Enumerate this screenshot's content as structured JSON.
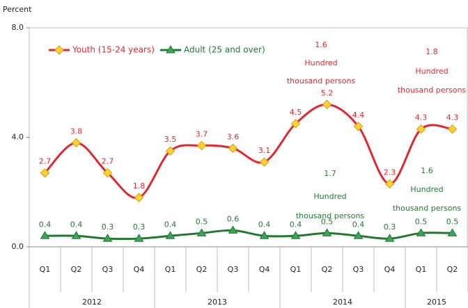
{
  "chart_data": {
    "type": "line",
    "y_axis_label": "Percent",
    "categories": [
      "Q1",
      "Q2",
      "Q3",
      "Q4",
      "Q1",
      "Q2",
      "Q3",
      "Q4",
      "Q1",
      "Q2",
      "Q3",
      "Q4",
      "Q1",
      "Q2"
    ],
    "category_groups": [
      {
        "label": "2012",
        "span": 4
      },
      {
        "label": "2013",
        "span": 4
      },
      {
        "label": "2014",
        "span": 4
      },
      {
        "label": "2015",
        "span": 2
      }
    ],
    "series": [
      {
        "name": "Youth (15-24 years)",
        "color": "#e3262b",
        "marker_color": "#ffd42a",
        "marker": "diamond",
        "values": [
          2.7,
          3.8,
          2.7,
          1.8,
          3.5,
          3.7,
          3.6,
          3.1,
          4.5,
          5.2,
          4.4,
          2.3,
          4.3,
          4.3
        ]
      },
      {
        "name": "Adult (25 and over)",
        "color": "#1f7a2e",
        "marker_color": "#3aa655",
        "marker": "triangle",
        "values": [
          0.4,
          0.4,
          0.3,
          0.3,
          0.4,
          0.5,
          0.6,
          0.4,
          0.4,
          0.5,
          0.4,
          0.3,
          0.5,
          0.5
        ]
      }
    ],
    "ylim": [
      0,
      8
    ],
    "yticks": [
      {
        "value": 0,
        "label": "0.0"
      },
      {
        "value": 4,
        "label": "4.0"
      },
      {
        "value": 8,
        "label": "8.0"
      }
    ],
    "grid": false,
    "legend": "top-left",
    "annotations": [
      {
        "color": "#e3262b",
        "lines": [
          "1.6",
          "Hundred",
          "thousand persons"
        ]
      },
      {
        "color": "#e3262b",
        "lines": [
          "1.8",
          "Hundred",
          "thousand persons"
        ]
      },
      {
        "color": "#1f7a2e",
        "lines": [
          "1.7",
          "Hundred",
          "thousand persons"
        ]
      },
      {
        "color": "#1f7a2e",
        "lines": [
          "1.6",
          "Hundred",
          "thousand persons"
        ]
      }
    ]
  }
}
